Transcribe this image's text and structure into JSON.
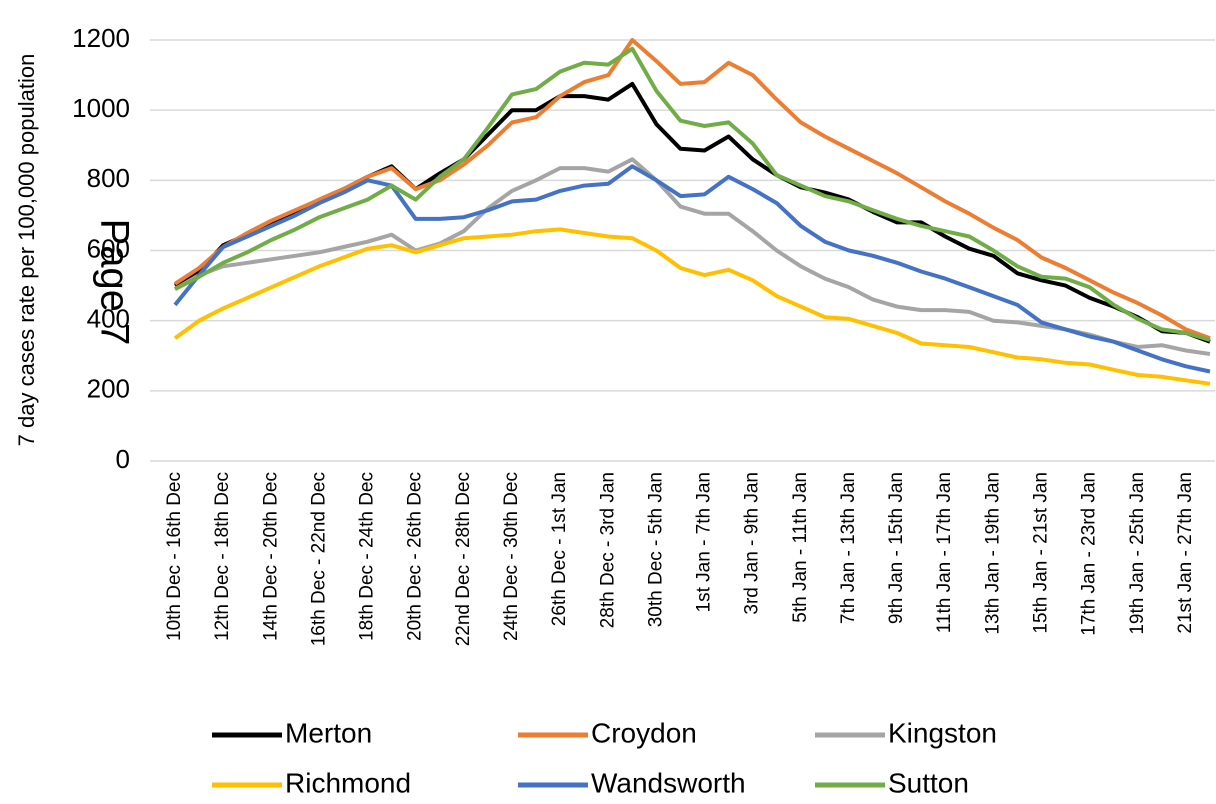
{
  "chart_data": {
    "type": "line",
    "ylabel": "7 day cases rate per 100,000 population",
    "annotation": "Page 7",
    "categories": [
      "10th Dec - 16th Dec",
      null,
      "12th Dec - 18th Dec",
      null,
      "14th Dec - 20th Dec",
      null,
      "16th Dec - 22nd Dec",
      null,
      "18th Dec - 24th Dec",
      null,
      "20th Dec - 26th Dec",
      null,
      "22nd Dec - 28th Dec",
      null,
      "24th Dec - 30th Dec",
      null,
      "26th Dec - 1st Jan",
      null,
      "28th Dec - 3rd Jan",
      null,
      "30th Dec - 5th Jan",
      null,
      "1st Jan - 7th Jan",
      null,
      "3rd Jan - 9th Jan",
      null,
      "5th Jan - 11th Jan",
      null,
      "7th Jan - 13th Jan",
      null,
      "9th Jan - 15th Jan",
      null,
      "11th Jan - 17th Jan",
      null,
      "13th Jan - 19th Jan",
      null,
      "15th Jan - 21st Jan",
      null,
      "17th Jan - 23rd Jan",
      null,
      "19th Jan - 25th Jan",
      null,
      "21st Jan - 27th Jan",
      null
    ],
    "series": [
      {
        "name": "Merton",
        "color": "#000000",
        "values": [
          500,
          540,
          615,
          645,
          680,
          710,
          745,
          775,
          810,
          840,
          775,
          820,
          860,
          930,
          1000,
          1000,
          1040,
          1040,
          1030,
          1075,
          960,
          890,
          885,
          925,
          860,
          815,
          780,
          765,
          745,
          710,
          680,
          680,
          640,
          605,
          585,
          535,
          515,
          500,
          465,
          440,
          410,
          370,
          365,
          340
        ]
      },
      {
        "name": "Croydon",
        "color": "#ed7d31",
        "values": [
          505,
          550,
          610,
          650,
          685,
          715,
          745,
          775,
          810,
          835,
          775,
          800,
          845,
          900,
          965,
          980,
          1040,
          1080,
          1100,
          1200,
          1140,
          1075,
          1080,
          1135,
          1100,
          1030,
          965,
          925,
          890,
          855,
          820,
          780,
          740,
          705,
          665,
          630,
          580,
          550,
          515,
          480,
          450,
          415,
          375,
          350
        ]
      },
      {
        "name": "Kingston",
        "color": "#a5a5a5",
        "values": [
          490,
          530,
          555,
          565,
          575,
          585,
          595,
          610,
          625,
          645,
          600,
          620,
          655,
          720,
          770,
          800,
          835,
          835,
          825,
          860,
          800,
          725,
          705,
          705,
          655,
          600,
          555,
          520,
          495,
          460,
          440,
          430,
          430,
          425,
          400,
          395,
          385,
          375,
          360,
          340,
          325,
          330,
          315,
          305
        ]
      },
      {
        "name": "Richmond",
        "color": "#ffc000",
        "values": [
          350,
          400,
          435,
          465,
          495,
          525,
          555,
          580,
          605,
          615,
          595,
          615,
          635,
          640,
          645,
          655,
          660,
          650,
          640,
          635,
          600,
          550,
          530,
          545,
          515,
          470,
          440,
          410,
          405,
          385,
          365,
          335,
          330,
          325,
          310,
          295,
          290,
          280,
          275,
          260,
          245,
          240,
          230,
          220
        ]
      },
      {
        "name": "Wandsworth",
        "color": "#4472c4",
        "values": [
          445,
          530,
          610,
          640,
          670,
          700,
          735,
          765,
          800,
          785,
          690,
          690,
          695,
          715,
          740,
          745,
          770,
          785,
          790,
          840,
          800,
          755,
          760,
          810,
          775,
          735,
          670,
          625,
          600,
          585,
          565,
          540,
          520,
          495,
          470,
          445,
          395,
          375,
          355,
          340,
          315,
          290,
          270,
          255
        ]
      },
      {
        "name": "Sutton",
        "color": "#70ad47",
        "values": [
          490,
          525,
          565,
          595,
          630,
          660,
          695,
          720,
          745,
          785,
          745,
          810,
          860,
          950,
          1045,
          1060,
          1110,
          1135,
          1130,
          1175,
          1055,
          970,
          955,
          965,
          905,
          815,
          785,
          755,
          740,
          715,
          690,
          670,
          655,
          640,
          600,
          555,
          525,
          520,
          495,
          445,
          405,
          375,
          365,
          345
        ]
      }
    ],
    "ylim": [
      0,
      1200
    ],
    "yticks": [
      0,
      200,
      400,
      600,
      800,
      1000,
      1200
    ],
    "grid": true,
    "legend": "bottom"
  }
}
